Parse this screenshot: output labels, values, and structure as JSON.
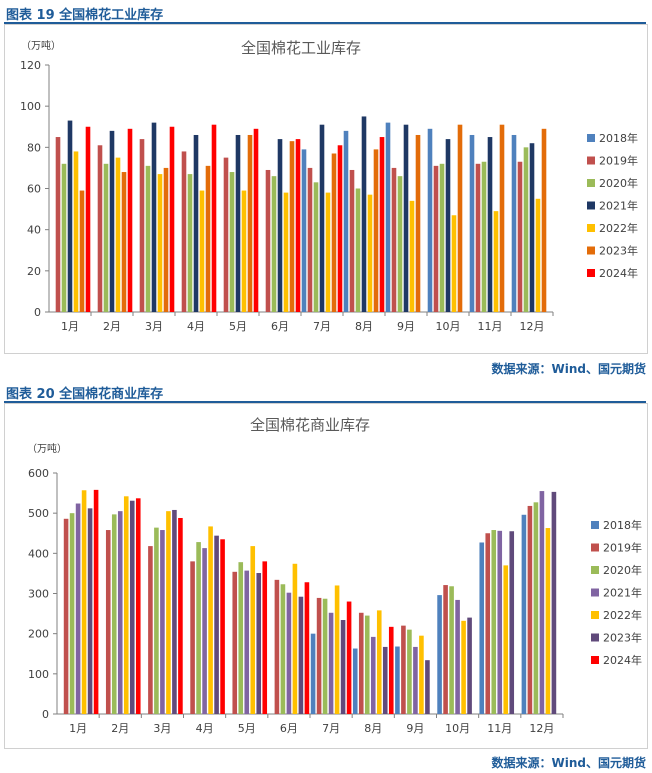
{
  "sections": [
    {
      "caption": "图表 19  全国棉花工业库存",
      "source": "数据来源：Wind、国元期货"
    },
    {
      "caption": "图表 20  全国棉花商业库存",
      "source": "数据来源：Wind、国元期货"
    }
  ],
  "colors": {
    "2018年": "#4f81bd",
    "2019年": "#c0504d",
    "2020年": "#9bbb59",
    "2021年": "#1f3864",
    "2021年_commercial": "#8064a2",
    "2022年": "#ffc000",
    "2023年": "#e36c09",
    "2023年_commercial": "#604a7b",
    "2024年": "#ff0000"
  },
  "chart_data": [
    {
      "type": "bar",
      "title": "全国棉花工业库存",
      "unit_label": "（万吨）",
      "categories": [
        "1月",
        "2月",
        "3月",
        "4月",
        "5月",
        "6月",
        "7月",
        "8月",
        "9月",
        "10月",
        "11月",
        "12月"
      ],
      "ylim": [
        0,
        120
      ],
      "yticks": [
        0,
        20,
        40,
        60,
        80,
        100,
        120
      ],
      "legend_position": "right",
      "grid": false,
      "series": [
        {
          "name": "2018年",
          "color": "#4f81bd",
          "values": [
            null,
            null,
            null,
            null,
            null,
            null,
            79,
            88,
            92,
            89,
            86,
            86
          ]
        },
        {
          "name": "2019年",
          "color": "#c0504d",
          "values": [
            85,
            81,
            84,
            78,
            75,
            69,
            70,
            69,
            70,
            71,
            72,
            73
          ]
        },
        {
          "name": "2020年",
          "color": "#9bbb59",
          "values": [
            72,
            72,
            71,
            67,
            68,
            66,
            63,
            60,
            66,
            72,
            73,
            80
          ]
        },
        {
          "name": "2021年",
          "color": "#1f3864",
          "values": [
            93,
            88,
            92,
            86,
            86,
            84,
            91,
            95,
            91,
            84,
            85,
            82
          ]
        },
        {
          "name": "2022年",
          "color": "#ffc000",
          "values": [
            78,
            75,
            67,
            59,
            59,
            58,
            58,
            57,
            54,
            47,
            49,
            55
          ]
        },
        {
          "name": "2023年",
          "color": "#e36c09",
          "values": [
            59,
            68,
            70,
            71,
            86,
            83,
            77,
            79,
            86,
            91,
            91,
            89
          ]
        },
        {
          "name": "2024年",
          "color": "#ff0000",
          "values": [
            90,
            89,
            90,
            91,
            89,
            84,
            81,
            85,
            null,
            null,
            null,
            null
          ]
        }
      ]
    },
    {
      "type": "bar",
      "title": "全国棉花商业库存",
      "unit_label": "（万吨）",
      "categories": [
        "1月",
        "2月",
        "3月",
        "4月",
        "5月",
        "6月",
        "7月",
        "8月",
        "9月",
        "10月",
        "11月",
        "12月"
      ],
      "ylim": [
        0,
        600
      ],
      "yticks": [
        0,
        100,
        200,
        300,
        400,
        500,
        600
      ],
      "legend_position": "right",
      "grid": false,
      "series": [
        {
          "name": "2018年",
          "color": "#4f81bd",
          "values": [
            null,
            null,
            null,
            null,
            null,
            null,
            200,
            163,
            168,
            296,
            427,
            496
          ]
        },
        {
          "name": "2019年",
          "color": "#c0504d",
          "values": [
            486,
            458,
            418,
            380,
            354,
            334,
            289,
            252,
            220,
            321,
            450,
            518
          ]
        },
        {
          "name": "2020年",
          "color": "#9bbb59",
          "values": [
            500,
            497,
            464,
            428,
            378,
            323,
            287,
            245,
            210,
            318,
            458,
            527
          ]
        },
        {
          "name": "2021年",
          "color": "#8064a2",
          "values": [
            524,
            505,
            458,
            413,
            357,
            302,
            252,
            192,
            167,
            284,
            456,
            555
          ]
        },
        {
          "name": "2022年",
          "color": "#ffc000",
          "values": [
            557,
            542,
            505,
            467,
            418,
            374,
            320,
            258,
            195,
            232,
            370,
            463
          ]
        },
        {
          "name": "2023年",
          "color": "#604a7b",
          "values": [
            512,
            531,
            508,
            444,
            351,
            292,
            234,
            167,
            134,
            240,
            455,
            553
          ]
        },
        {
          "name": "2024年",
          "color": "#ff0000",
          "values": [
            558,
            537,
            488,
            435,
            380,
            328,
            280,
            217,
            null,
            null,
            null,
            null
          ]
        }
      ]
    }
  ]
}
